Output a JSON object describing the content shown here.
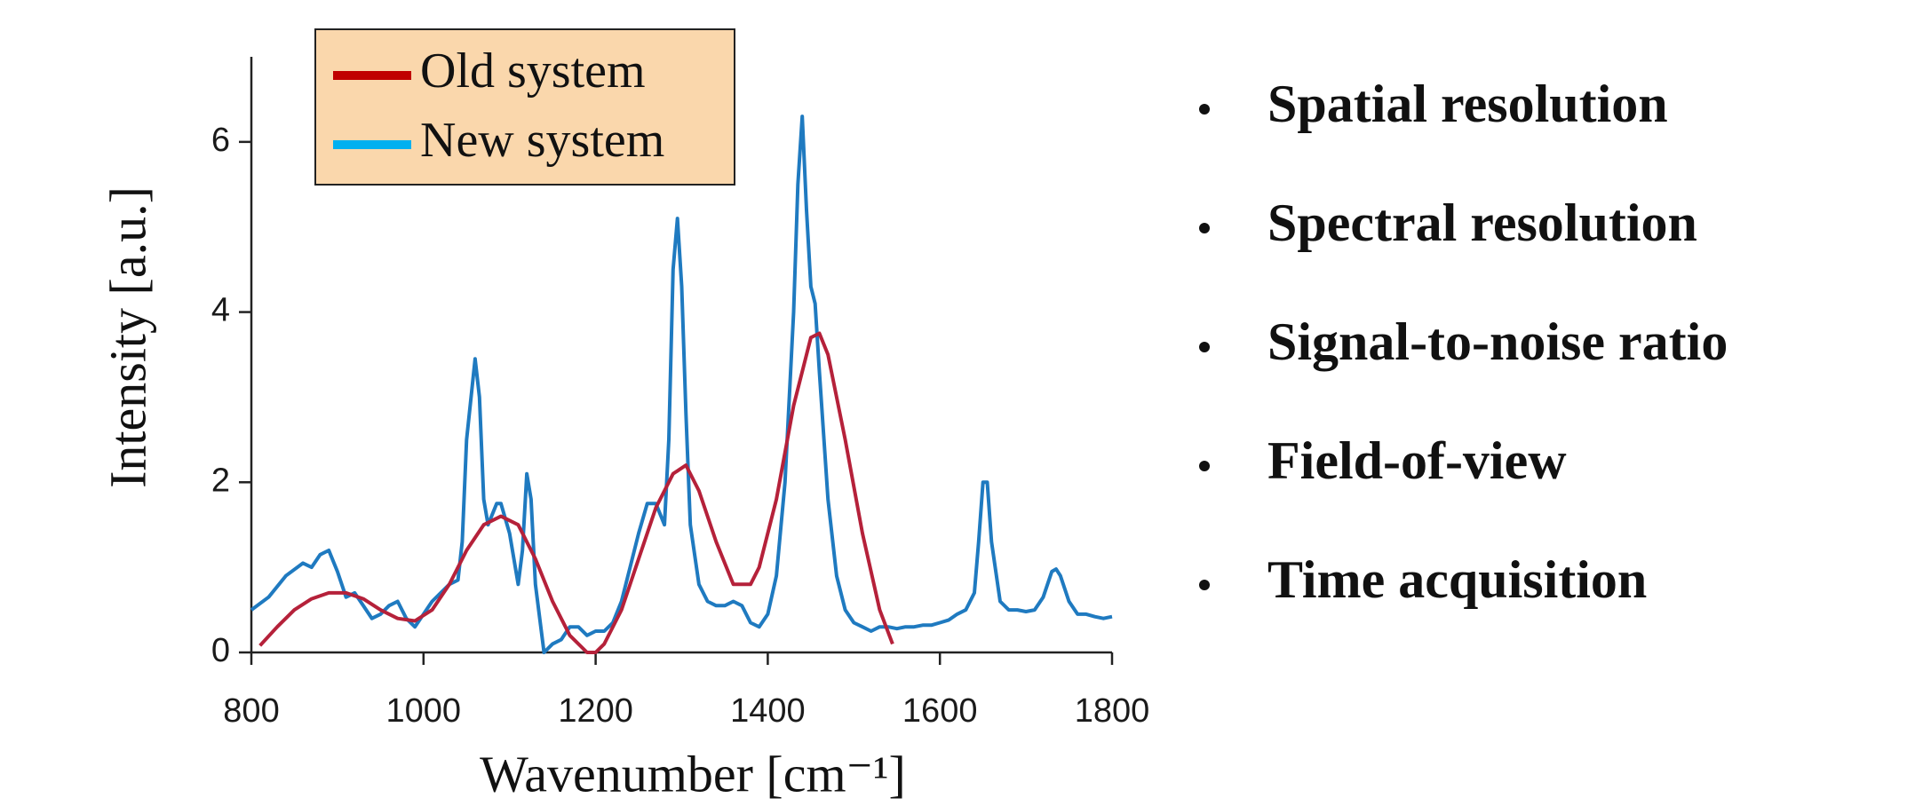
{
  "chart_data": {
    "type": "line",
    "xlabel": "Wavenumber [cm⁻¹]",
    "ylabel": "Intensity [a.u.]",
    "xlim": [
      800,
      1800
    ],
    "xticks": [
      800,
      1000,
      1200,
      1400,
      1600,
      1800
    ],
    "ylim": [
      0,
      7
    ],
    "yticks": [
      0,
      2,
      4,
      6
    ],
    "legend": "upper left",
    "legend_background": "#fad7ac",
    "series": [
      {
        "name": "Old system",
        "color": "#b5213a",
        "legend_color": "#c00000",
        "x": [
          810,
          830,
          850,
          870,
          890,
          910,
          930,
          950,
          970,
          990,
          1010,
          1030,
          1050,
          1070,
          1090,
          1110,
          1130,
          1150,
          1170,
          1190,
          1200,
          1210,
          1230,
          1250,
          1270,
          1290,
          1305,
          1320,
          1340,
          1360,
          1380,
          1390,
          1410,
          1430,
          1450,
          1460,
          1470,
          1490,
          1510,
          1530,
          1545
        ],
        "values": [
          0.08,
          0.3,
          0.5,
          0.63,
          0.7,
          0.7,
          0.63,
          0.5,
          0.4,
          0.37,
          0.5,
          0.8,
          1.2,
          1.5,
          1.6,
          1.5,
          1.1,
          0.6,
          0.2,
          0.0,
          0.0,
          0.1,
          0.5,
          1.1,
          1.7,
          2.1,
          2.2,
          1.9,
          1.3,
          0.8,
          0.8,
          1.0,
          1.8,
          2.9,
          3.7,
          3.75,
          3.5,
          2.5,
          1.4,
          0.5,
          0.1
        ]
      },
      {
        "name": "New system",
        "color": "#1f7ac0",
        "legend_color": "#00b0f0",
        "x": [
          800,
          820,
          840,
          860,
          870,
          880,
          890,
          900,
          910,
          920,
          930,
          940,
          950,
          960,
          970,
          980,
          990,
          1000,
          1010,
          1020,
          1030,
          1040,
          1045,
          1050,
          1060,
          1065,
          1070,
          1075,
          1085,
          1090,
          1100,
          1110,
          1115,
          1120,
          1125,
          1130,
          1140,
          1150,
          1160,
          1170,
          1180,
          1190,
          1200,
          1210,
          1220,
          1230,
          1240,
          1250,
          1260,
          1270,
          1280,
          1285,
          1290,
          1295,
          1300,
          1305,
          1310,
          1320,
          1330,
          1340,
          1350,
          1360,
          1370,
          1380,
          1390,
          1400,
          1410,
          1420,
          1430,
          1435,
          1440,
          1445,
          1450,
          1455,
          1460,
          1470,
          1480,
          1490,
          1500,
          1510,
          1520,
          1530,
          1540,
          1550,
          1560,
          1570,
          1580,
          1590,
          1600,
          1610,
          1620,
          1630,
          1640,
          1645,
          1650,
          1655,
          1660,
          1670,
          1680,
          1690,
          1700,
          1710,
          1720,
          1730,
          1735,
          1740,
          1750,
          1760,
          1770,
          1780,
          1790,
          1800
        ],
        "values": [
          0.5,
          0.65,
          0.9,
          1.05,
          1.0,
          1.15,
          1.2,
          0.95,
          0.65,
          0.7,
          0.55,
          0.4,
          0.45,
          0.55,
          0.6,
          0.4,
          0.3,
          0.45,
          0.6,
          0.7,
          0.8,
          0.85,
          1.3,
          2.5,
          3.45,
          3.0,
          1.8,
          1.5,
          1.75,
          1.75,
          1.4,
          0.8,
          1.2,
          2.1,
          1.8,
          0.8,
          0.0,
          0.1,
          0.15,
          0.3,
          0.3,
          0.2,
          0.25,
          0.25,
          0.35,
          0.6,
          1.0,
          1.4,
          1.75,
          1.75,
          1.5,
          2.5,
          4.5,
          5.1,
          4.3,
          2.8,
          1.5,
          0.8,
          0.6,
          0.55,
          0.55,
          0.6,
          0.55,
          0.35,
          0.3,
          0.45,
          0.9,
          2.0,
          4.0,
          5.5,
          6.3,
          5.2,
          4.3,
          4.1,
          3.3,
          1.8,
          0.9,
          0.5,
          0.35,
          0.3,
          0.25,
          0.3,
          0.3,
          0.28,
          0.3,
          0.3,
          0.32,
          0.32,
          0.35,
          0.38,
          0.45,
          0.5,
          0.7,
          1.3,
          2.0,
          2.0,
          1.3,
          0.6,
          0.5,
          0.5,
          0.48,
          0.5,
          0.65,
          0.95,
          0.98,
          0.9,
          0.6,
          0.45,
          0.45,
          0.42,
          0.4,
          0.42
        ]
      }
    ]
  },
  "bullets": [
    "Spatial resolution",
    "Spectral resolution",
    "Signal-to-noise ratio",
    "Field-of-view",
    "Time acquisition"
  ]
}
